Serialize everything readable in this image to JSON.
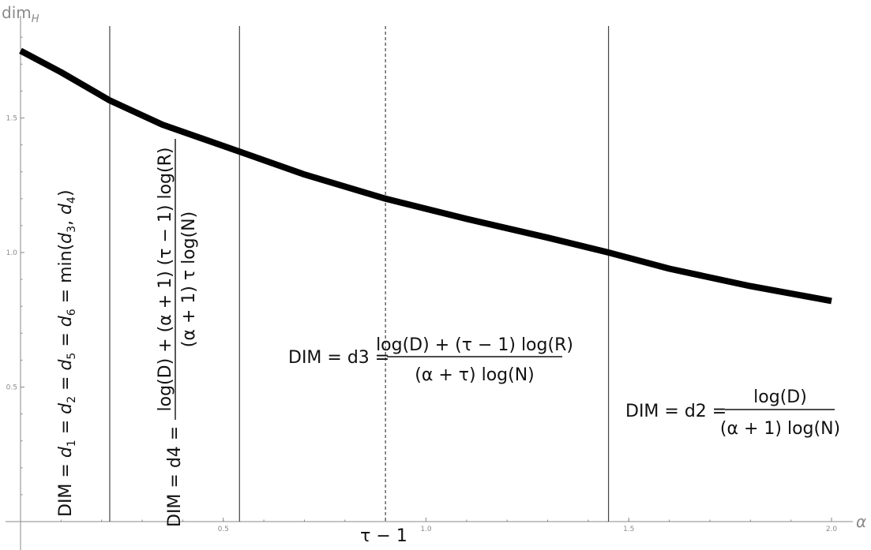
{
  "chart_data": {
    "type": "line",
    "title": "",
    "xlabel": "α",
    "ylabel": "dim",
    "ylabel_sub": "H",
    "xlim": [
      0.0,
      2.05
    ],
    "ylim": [
      0.0,
      1.9
    ],
    "x_ticks": [
      {
        "value": 0.5,
        "label": "0.5"
      },
      {
        "value": 1.0,
        "label": "1.0"
      },
      {
        "value": 1.5,
        "label": "1.5"
      },
      {
        "value": 2.0,
        "label": "2.0"
      }
    ],
    "y_ticks": [
      {
        "value": 0.5,
        "label": "0.5"
      },
      {
        "value": 1.0,
        "label": "1.0"
      },
      {
        "value": 1.5,
        "label": "1.5"
      }
    ],
    "series": [
      {
        "x": [
          0.0,
          0.1,
          0.22,
          0.35,
          0.54,
          0.7,
          0.9,
          1.1,
          1.3,
          1.45,
          1.6,
          1.8,
          2.0
        ],
        "y": [
          1.75,
          1.67,
          1.565,
          1.475,
          1.375,
          1.29,
          1.2,
          1.125,
          1.055,
          1.0,
          0.94,
          0.875,
          0.82
        ]
      }
    ],
    "vertical_lines": [
      {
        "x": 0.22,
        "style": "solid"
      },
      {
        "x": 0.54,
        "style": "solid"
      },
      {
        "x": 0.9,
        "style": "dashed",
        "label": "τ − 1"
      },
      {
        "x": 1.45,
        "style": "solid"
      }
    ],
    "annotations": {
      "region1": {
        "prefix": "DIM = ",
        "d1": "1",
        "d2": "2",
        "d5": "5",
        "d6": "6",
        "d3": "3",
        "d4": "4",
        "text": "DIM = d1 = d2 = d5 = d6 = min(d3, d4)"
      },
      "region2": {
        "prefix": "DIM = d4 =",
        "numerator": "log(D) + (α + 1) (τ − 1) log(R)",
        "denominator": "(α + 1) τ log(N)"
      },
      "region3": {
        "prefix": "DIM = d3 =",
        "numerator": "log(D) + (τ − 1) log(R)",
        "denominator": "(α + τ) log(N)"
      },
      "region4": {
        "prefix": "DIM = d2 =",
        "numerator": "log(D)",
        "denominator": "(α + 1) log(N)"
      }
    }
  }
}
